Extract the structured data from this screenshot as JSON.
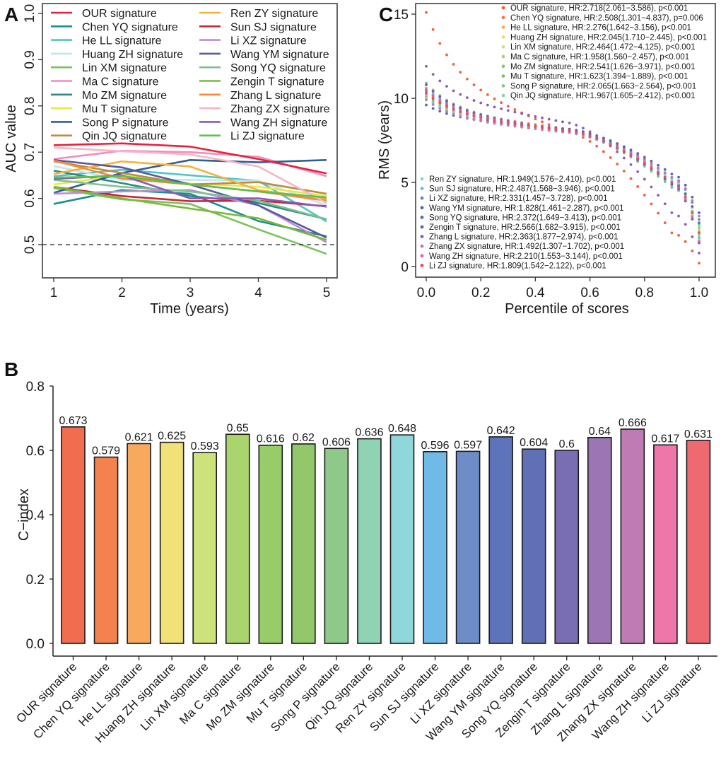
{
  "chart_data": [
    {
      "panel": "A",
      "type": "line",
      "xlabel": "Time (years)",
      "ylabel": "AUC value",
      "x": [
        1,
        2,
        3,
        4,
        5
      ],
      "xticks": [
        "1",
        "2",
        "3",
        "4",
        "5"
      ],
      "yticks": [
        "0.5",
        "0.6",
        "0.7",
        "0.8",
        "0.9",
        "1.0"
      ],
      "ylim": [
        0.46,
        1.01
      ],
      "xlim": [
        0.83,
        5.15
      ],
      "reference_line": {
        "y": 0.5,
        "style": "dashed"
      },
      "legend_position": "top",
      "series": [
        {
          "name": "OUR signature",
          "color": "#e8203a",
          "label_color": "#f0502a",
          "values": [
            0.715,
            0.719,
            0.712,
            0.685,
            0.654
          ]
        },
        {
          "name": "Chen YQ signature",
          "color": "#1b8f8f",
          "values": [
            0.588,
            0.618,
            0.61,
            0.551,
            0.518
          ]
        },
        {
          "name": "He LL signature",
          "color": "#4fc6c6",
          "values": [
            0.648,
            0.662,
            0.65,
            0.638,
            0.55
          ]
        },
        {
          "name": "Huang ZH signature",
          "color": "#bfe6ef",
          "values": [
            0.67,
            0.64,
            0.64,
            0.638,
            0.585
          ]
        },
        {
          "name": "Lin XM signature",
          "color": "#78c45a",
          "values": [
            0.622,
            0.598,
            0.588,
            0.533,
            0.48
          ]
        },
        {
          "name": "Ma C signature",
          "color": "#f28cbc",
          "values": [
            0.685,
            0.703,
            0.7,
            0.69,
            0.648
          ]
        },
        {
          "name": "Mo ZM signature",
          "color": "#2a8a88",
          "values": [
            0.66,
            0.633,
            0.605,
            0.59,
            0.555
          ]
        },
        {
          "name": "Mu T signature",
          "color": "#e8e84a",
          "values": [
            0.63,
            0.65,
            0.632,
            0.625,
            0.605
          ]
        },
        {
          "name": "Song P signature",
          "color": "#2f5e96",
          "values": [
            0.612,
            0.655,
            0.683,
            0.678,
            0.683
          ]
        },
        {
          "name": "Qin JQ signature",
          "color": "#c08a3e",
          "values": [
            0.68,
            0.655,
            0.63,
            0.635,
            0.61
          ]
        },
        {
          "name": "Ren ZY signature",
          "color": "#f2b23e",
          "values": [
            0.653,
            0.68,
            0.669,
            0.618,
            0.598
          ]
        },
        {
          "name": "Sun SJ signature",
          "color": "#c22a36",
          "values": [
            0.625,
            0.605,
            0.594,
            0.595,
            0.583
          ]
        },
        {
          "name": "Li XZ signature",
          "color": "#c28ad2",
          "values": [
            0.61,
            0.615,
            0.618,
            0.585,
            0.505
          ]
        },
        {
          "name": "Wang YM signature",
          "color": "#575c9a",
          "values": [
            0.683,
            0.667,
            0.63,
            0.585,
            0.515
          ]
        },
        {
          "name": "Song YQ signature",
          "color": "#7fc08c",
          "values": [
            0.64,
            0.625,
            0.615,
            0.595,
            0.555
          ]
        },
        {
          "name": "Zengin T signature",
          "color": "#7ab83c",
          "values": [
            0.625,
            0.6,
            0.578,
            0.557,
            0.51
          ]
        },
        {
          "name": "Zhang L signature",
          "color": "#f58a3a",
          "values": [
            0.682,
            0.643,
            0.63,
            0.615,
            0.595
          ]
        },
        {
          "name": "Zhang ZX signature",
          "color": "#f6b6c2",
          "values": [
            0.71,
            0.702,
            0.695,
            0.669,
            0.59
          ]
        },
        {
          "name": "Wang ZH signature",
          "color": "#8a58ba",
          "values": [
            0.642,
            0.65,
            0.6,
            0.6,
            0.582
          ]
        },
        {
          "name": "Li ZJ signature",
          "color": "#5cc052",
          "values": [
            0.645,
            0.648,
            0.63,
            0.615,
            0.602
          ]
        }
      ]
    },
    {
      "panel": "B",
      "type": "bar",
      "ylabel": "C−index",
      "xlabel": "",
      "ylim": [
        0,
        0.8
      ],
      "yticks": [
        "0.0",
        "0.2",
        "0.4",
        "0.6",
        "0.8"
      ],
      "highlight_label_color": "#f0502a",
      "categories": [
        "OUR signature",
        "Chen YQ signature",
        "He LL signature",
        "Huang ZH signature",
        "Lin XM signature",
        "Ma C signature",
        "Mo ZM signature",
        "Mu T signature",
        "Song P signature",
        "Qin JQ signature",
        "Ren ZY signature",
        "Sun SJ signature",
        "Li XZ signature",
        "Wang YM signature",
        "Song YQ signature",
        "Zengin T signature",
        "Zhang L signature",
        "Zhang ZX signature",
        "Wang ZH signature",
        "Li ZJ signature"
      ],
      "values": [
        0.673,
        0.579,
        0.621,
        0.625,
        0.593,
        0.65,
        0.616,
        0.62,
        0.606,
        0.636,
        0.648,
        0.596,
        0.597,
        0.642,
        0.604,
        0.6,
        0.64,
        0.666,
        0.617,
        0.631
      ],
      "value_labels": [
        "0.673",
        "0.579",
        "0.621",
        "0.625",
        "0.593",
        "0.65",
        "0.616",
        "0.62",
        "0.606",
        "0.636",
        "0.648",
        "0.596",
        "0.597",
        "0.642",
        "0.604",
        "0.6",
        "0.64",
        "0.666",
        "0.617",
        "0.631"
      ],
      "colors": [
        "#f26c4f",
        "#f3824f",
        "#f7a95e",
        "#f2e078",
        "#cde27a",
        "#a9d46e",
        "#98cc68",
        "#90c86a",
        "#8ec98a",
        "#90d2b4",
        "#90d7dc",
        "#6fbae6",
        "#6d8cc8",
        "#5e74ba",
        "#6070b4",
        "#7a6eb2",
        "#9a76b4",
        "#be7bb4",
        "#ef76a8",
        "#ef6a70"
      ]
    },
    {
      "panel": "C",
      "type": "scatter",
      "xlabel": "Percentile of scores",
      "ylabel": "RMS (years)",
      "xlim": [
        -0.04,
        1.06
      ],
      "ylim": [
        -0.5,
        15.6
      ],
      "xticks": [
        "0.0",
        "0.2",
        "0.4",
        "0.6",
        "0.8",
        "1.0"
      ],
      "yticks": [
        "0",
        "5",
        "10",
        "15"
      ],
      "legend_position": "top-right and bottom-left",
      "series": [
        {
          "name": "OUR signature",
          "label": "OUR signature, HR:2.718(2.061−3.586), p<0.001",
          "color": "#f0603a",
          "highlight": true,
          "curve": [
            15.1,
            8.1,
            2.0,
            0.2
          ]
        },
        {
          "name": "Chen YQ signature",
          "label": "Chen YQ signature, HR:2.508(1.301−4.837), p=0.006",
          "color": "#f3764e",
          "curve": [
            10.6,
            8.2,
            5.3,
            1.5
          ]
        },
        {
          "name": "He LL signature",
          "label": "He LL signature, HR:2.276(1.642−3.156), p<0.001",
          "color": "#f7a95e",
          "curve": [
            10.5,
            8.1,
            5.0,
            2.0
          ]
        },
        {
          "name": "Huang ZH signature",
          "label": "Huang ZH signature, HR:2.045(1.710−2.445), p<0.001",
          "color": "#f2de70",
          "curve": [
            10.4,
            8.1,
            4.9,
            2.2
          ]
        },
        {
          "name": "Lin XM signature",
          "label": "Lin XM signature, HR:2.464(1.472−4.125), p<0.001",
          "color": "#cde27a",
          "curve": [
            10.3,
            8.1,
            4.8,
            1.6
          ]
        },
        {
          "name": "Ma C signature",
          "label": "Ma C signature, HR:1.958(1.560−2.457), p<0.001",
          "color": "#a6d46c",
          "curve": [
            10.2,
            8.0,
            4.9,
            1.9
          ]
        },
        {
          "name": "Mo ZM signature",
          "label": "Mo ZM signature, HR:2.541(1.626−3.971), p<0.001",
          "color": "#8cc85e",
          "curve": [
            10.9,
            8.1,
            4.7,
            2.3
          ]
        },
        {
          "name": "Mu T signature",
          "label": "Mu T signature, HR:1.623(1.394−1.889), p<0.001",
          "color": "#7cc262",
          "curve": [
            10.1,
            8.0,
            5.1,
            2.5
          ]
        },
        {
          "name": "Song P signature",
          "label": "Song P signature, HR:2.065(1.663−2.564), p<0.001",
          "color": "#86c98c",
          "curve": [
            10.3,
            8.0,
            5.0,
            2.1
          ]
        },
        {
          "name": "Qin JQ signature",
          "label": "Qin JQ signature, HR:1.967(1.605−2.412), p<0.001",
          "color": "#8ad2b4",
          "curve": [
            10.0,
            8.0,
            5.2,
            1.8
          ]
        },
        {
          "name": "Ren ZY signature",
          "label": "Ren ZY signature, HR:1.949(1.576−2.410), p<0.001",
          "color": "#88d4dc",
          "curve": [
            10.0,
            8.0,
            5.1,
            2.4
          ]
        },
        {
          "name": "Sun SJ signature",
          "label": "Sun SJ signature, HR:2.487(1.568−3.946), p<0.001",
          "color": "#6bb8e6",
          "curve": [
            10.6,
            8.1,
            4.8,
            1.7
          ]
        },
        {
          "name": "Li XZ signature",
          "label": "Li XZ signature, HR:2.331(1.457−3.728), p<0.001",
          "color": "#5e88c8",
          "curve": [
            10.4,
            8.1,
            5.3,
            2.8
          ]
        },
        {
          "name": "Wang YM signature",
          "label": "Wang YM signature, HR:1.828(1.461−2.287), p<0.001",
          "color": "#4f66b4",
          "curve": [
            9.6,
            8.2,
            5.5,
            3.2
          ]
        },
        {
          "name": "Song YQ signature",
          "label": "Song YQ signature, HR:2.372(1.649−3.413), p<0.001",
          "color": "#5a68b2",
          "curve": [
            10.5,
            8.1,
            5.0,
            2.6
          ]
        },
        {
          "name": "Zengin T signature",
          "label": "Zengin T signature, HR:2.566(1.682−3.915), p<0.001",
          "color": "#6a5eac",
          "curve": [
            10.8,
            8.1,
            4.9,
            1.4
          ]
        },
        {
          "name": "Zhang L signature",
          "label": "Zhang L signature, HR:2.363(1.877−2.974), p<0.001",
          "color": "#8e5cb6",
          "curve": [
            11.9,
            8.6,
            3.2,
            0.8
          ]
        },
        {
          "name": "Zhang ZX signature",
          "label": "Zhang ZX signature, HR:1.492(1.307−1.702), p<0.001",
          "color": "#be7bb4",
          "curve": [
            9.9,
            8.0,
            5.3,
            3.0
          ]
        },
        {
          "name": "Wang ZH signature",
          "label": "Wang ZH signature, HR:2.210(1.553−3.144), p<0.001",
          "color": "#ef5aa6",
          "curve": [
            10.5,
            8.1,
            5.0,
            1.5
          ]
        },
        {
          "name": "Li ZJ signature",
          "label": "Li ZJ signature, HR:1.809(1.542−2.122), p<0.001",
          "color": "#ef4a5a",
          "curve": [
            10.3,
            8.1,
            5.0,
            2.0
          ]
        }
      ]
    }
  ],
  "panels": {
    "a_letter": "A",
    "b_letter": "B",
    "c_letter": "C"
  }
}
